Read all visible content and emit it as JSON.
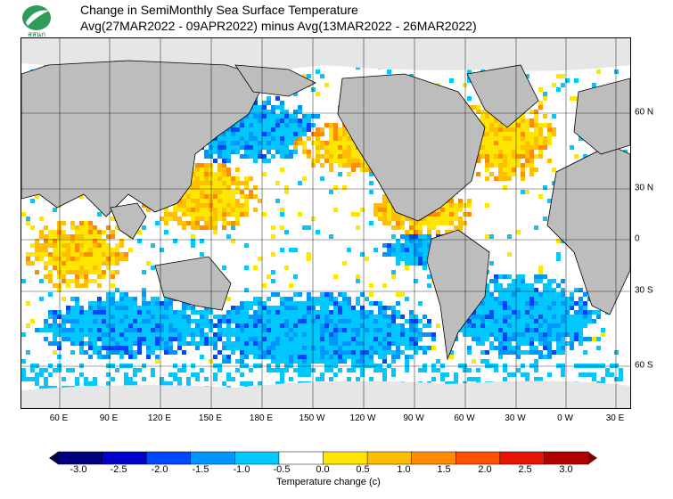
{
  "logo": {
    "text": "สสนก"
  },
  "title": {
    "line1": "Change in SemiMonthly Sea Surface Temperature",
    "line2": "Avg(27MAR2022 - 09APR2022) minus Avg(13MAR2022 - 26MAR2022)"
  },
  "map": {
    "lon_labels": [
      "60 E",
      "90 E",
      "120 E",
      "150 E",
      "180 E",
      "150 W",
      "120 W",
      "90 W",
      "60 W",
      "30 W",
      "0 W",
      "30 E"
    ],
    "lat_labels": [
      "60 N",
      "30 N",
      "0",
      "30 S",
      "60 S"
    ],
    "land_color": "#bdbdbd",
    "ice_color": "#e6e6e6",
    "grid_color": "#000000"
  },
  "colorbar": {
    "ticks": [
      "-3.0",
      "-2.5",
      "-2.0",
      "-1.5",
      "-1.0",
      "-0.5",
      "0.0",
      "0.5",
      "1.0",
      "1.5",
      "2.0",
      "2.5",
      "3.0"
    ],
    "colors": [
      "#000080",
      "#0000c8",
      "#0046ff",
      "#0096ff",
      "#00c8ff",
      "#ffffff",
      "#ffe600",
      "#ffbe00",
      "#ff8c00",
      "#ff5000",
      "#e61400",
      "#b40000"
    ],
    "caption": "Temperature change (c)"
  }
}
